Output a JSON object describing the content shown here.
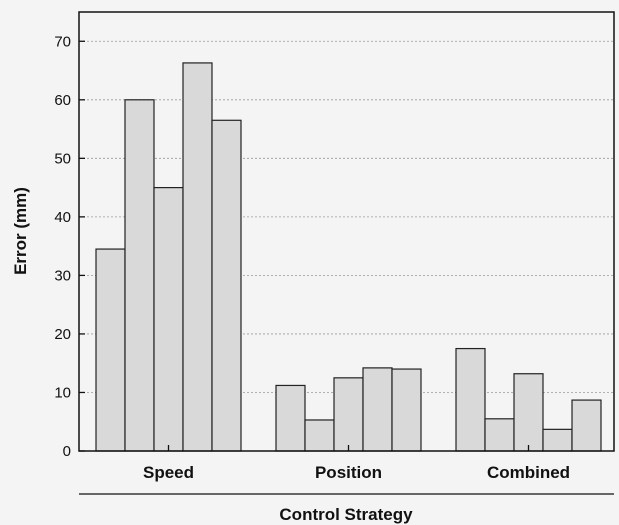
{
  "chart_data": {
    "type": "bar",
    "title": "",
    "xlabel": "Control Strategy",
    "ylabel": "Error (mm)",
    "ylim": [
      0,
      75
    ],
    "yticks": [
      0,
      10,
      20,
      30,
      40,
      50,
      60,
      70
    ],
    "grid": true,
    "groups": [
      {
        "label": "Speed",
        "values": [
          34.5,
          60,
          45,
          66.3,
          56.5
        ]
      },
      {
        "label": "Position",
        "values": [
          11.2,
          5.3,
          12.5,
          14.2,
          14.0
        ]
      },
      {
        "label": "Combined",
        "values": [
          17.5,
          5.5,
          13.2,
          3.7,
          8.7
        ]
      }
    ],
    "colors": {
      "bar_fill": "#d9d9d9",
      "bar_stroke": "#222222",
      "background": "#f4f4f4"
    }
  }
}
